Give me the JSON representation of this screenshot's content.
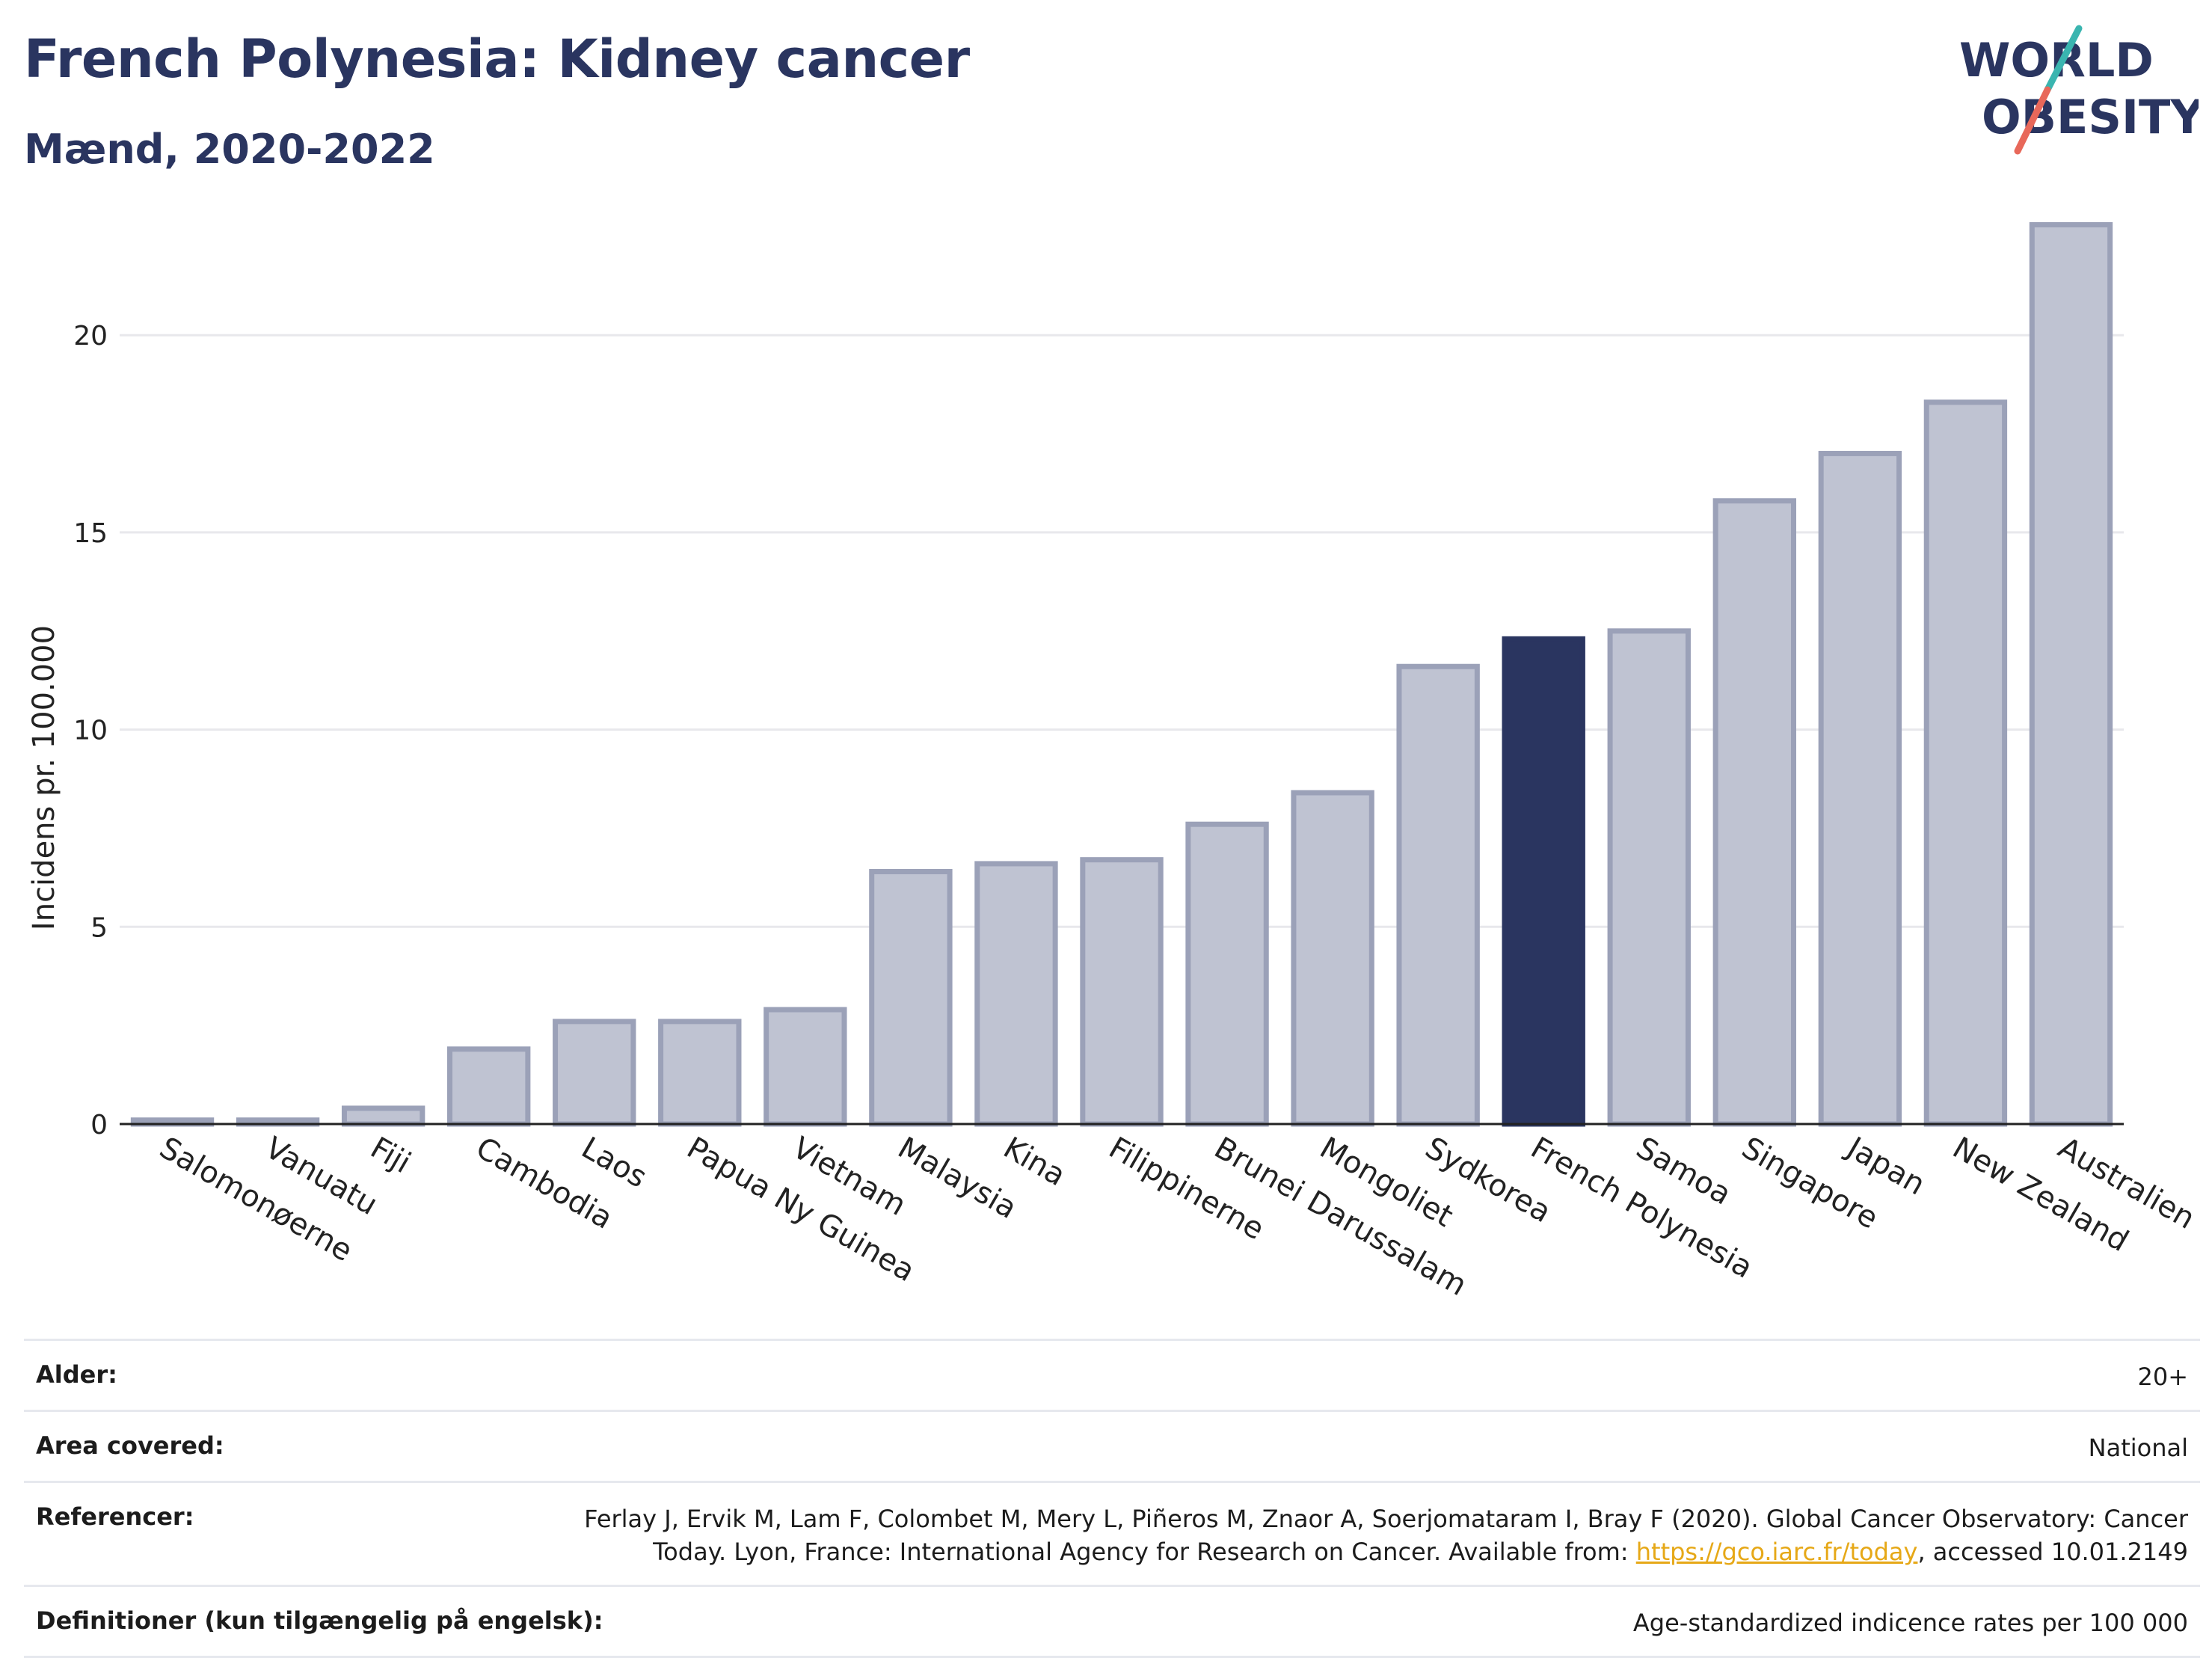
{
  "header": {
    "title": "French Polynesia: Kidney cancer",
    "subtitle": "Mænd, 2020-2022"
  },
  "logo": {
    "line1": "WORLD",
    "line2": "OBESITY",
    "colors": {
      "text": "#2a3560",
      "slash_teal": "#3ab5b0",
      "slash_red": "#e8685a"
    }
  },
  "chart_data": {
    "type": "bar",
    "ylabel": "Incidens pr. 100.000",
    "xlabel": "",
    "ylim": [
      0,
      23
    ],
    "yticks": [
      0,
      5,
      10,
      15,
      20
    ],
    "grid": true,
    "highlight": "French Polynesia",
    "colors": {
      "bar": "#bfc3d2",
      "bar_edge": "#9ba1b8",
      "highlight": "#2a3560"
    },
    "categories": [
      "Salomonøerne",
      "Vanuatu",
      "Fiji",
      "Cambodia",
      "Laos",
      "Papua Ny Guinea",
      "Vietnam",
      "Malaysia",
      "Kina",
      "Filippinerne",
      "Brunei Darussalam",
      "Mongoliet",
      "Sydkorea",
      "French Polynesia",
      "Samoa",
      "Singapore",
      "Japan",
      "New Zealand",
      "Australien"
    ],
    "values": [
      0.1,
      0.1,
      0.4,
      1.9,
      2.6,
      2.6,
      2.9,
      6.4,
      6.6,
      6.7,
      7.6,
      8.4,
      11.6,
      12.3,
      12.5,
      15.8,
      17.0,
      18.3,
      22.8
    ]
  },
  "meta": [
    {
      "key": "Alder:",
      "value": "20+"
    },
    {
      "key": "Area covered:",
      "value": "National"
    },
    {
      "key": "Referencer:",
      "value_pre": "Ferlay J, Ervik M, Lam F, Colombet M, Mery L, Piñeros M, Znaor A, Soerjomataram I, Bray F (2020). Global Cancer Observatory: Cancer Today. Lyon, France: International Agency for Research on Cancer. Available from: ",
      "link": "https://gco.iarc.fr/today",
      "value_post": ", accessed 10.01.2149"
    },
    {
      "key": "Definitioner (kun tilgængelig på engelsk):",
      "value": "Age-standardized indicence rates per 100 000"
    }
  ]
}
